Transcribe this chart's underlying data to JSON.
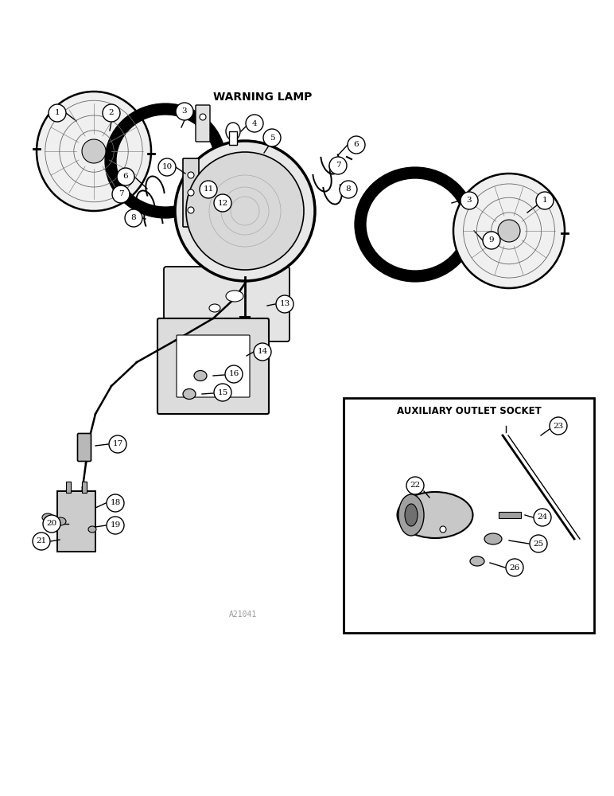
{
  "title": "WARNING LAMP",
  "aux_title": "AUXILIARY OUTLET SOCKET",
  "bg_color": "#ffffff",
  "line_color": "#000000",
  "fig_width": 7.72,
  "fig_height": 10.0,
  "watermark": "A21041"
}
